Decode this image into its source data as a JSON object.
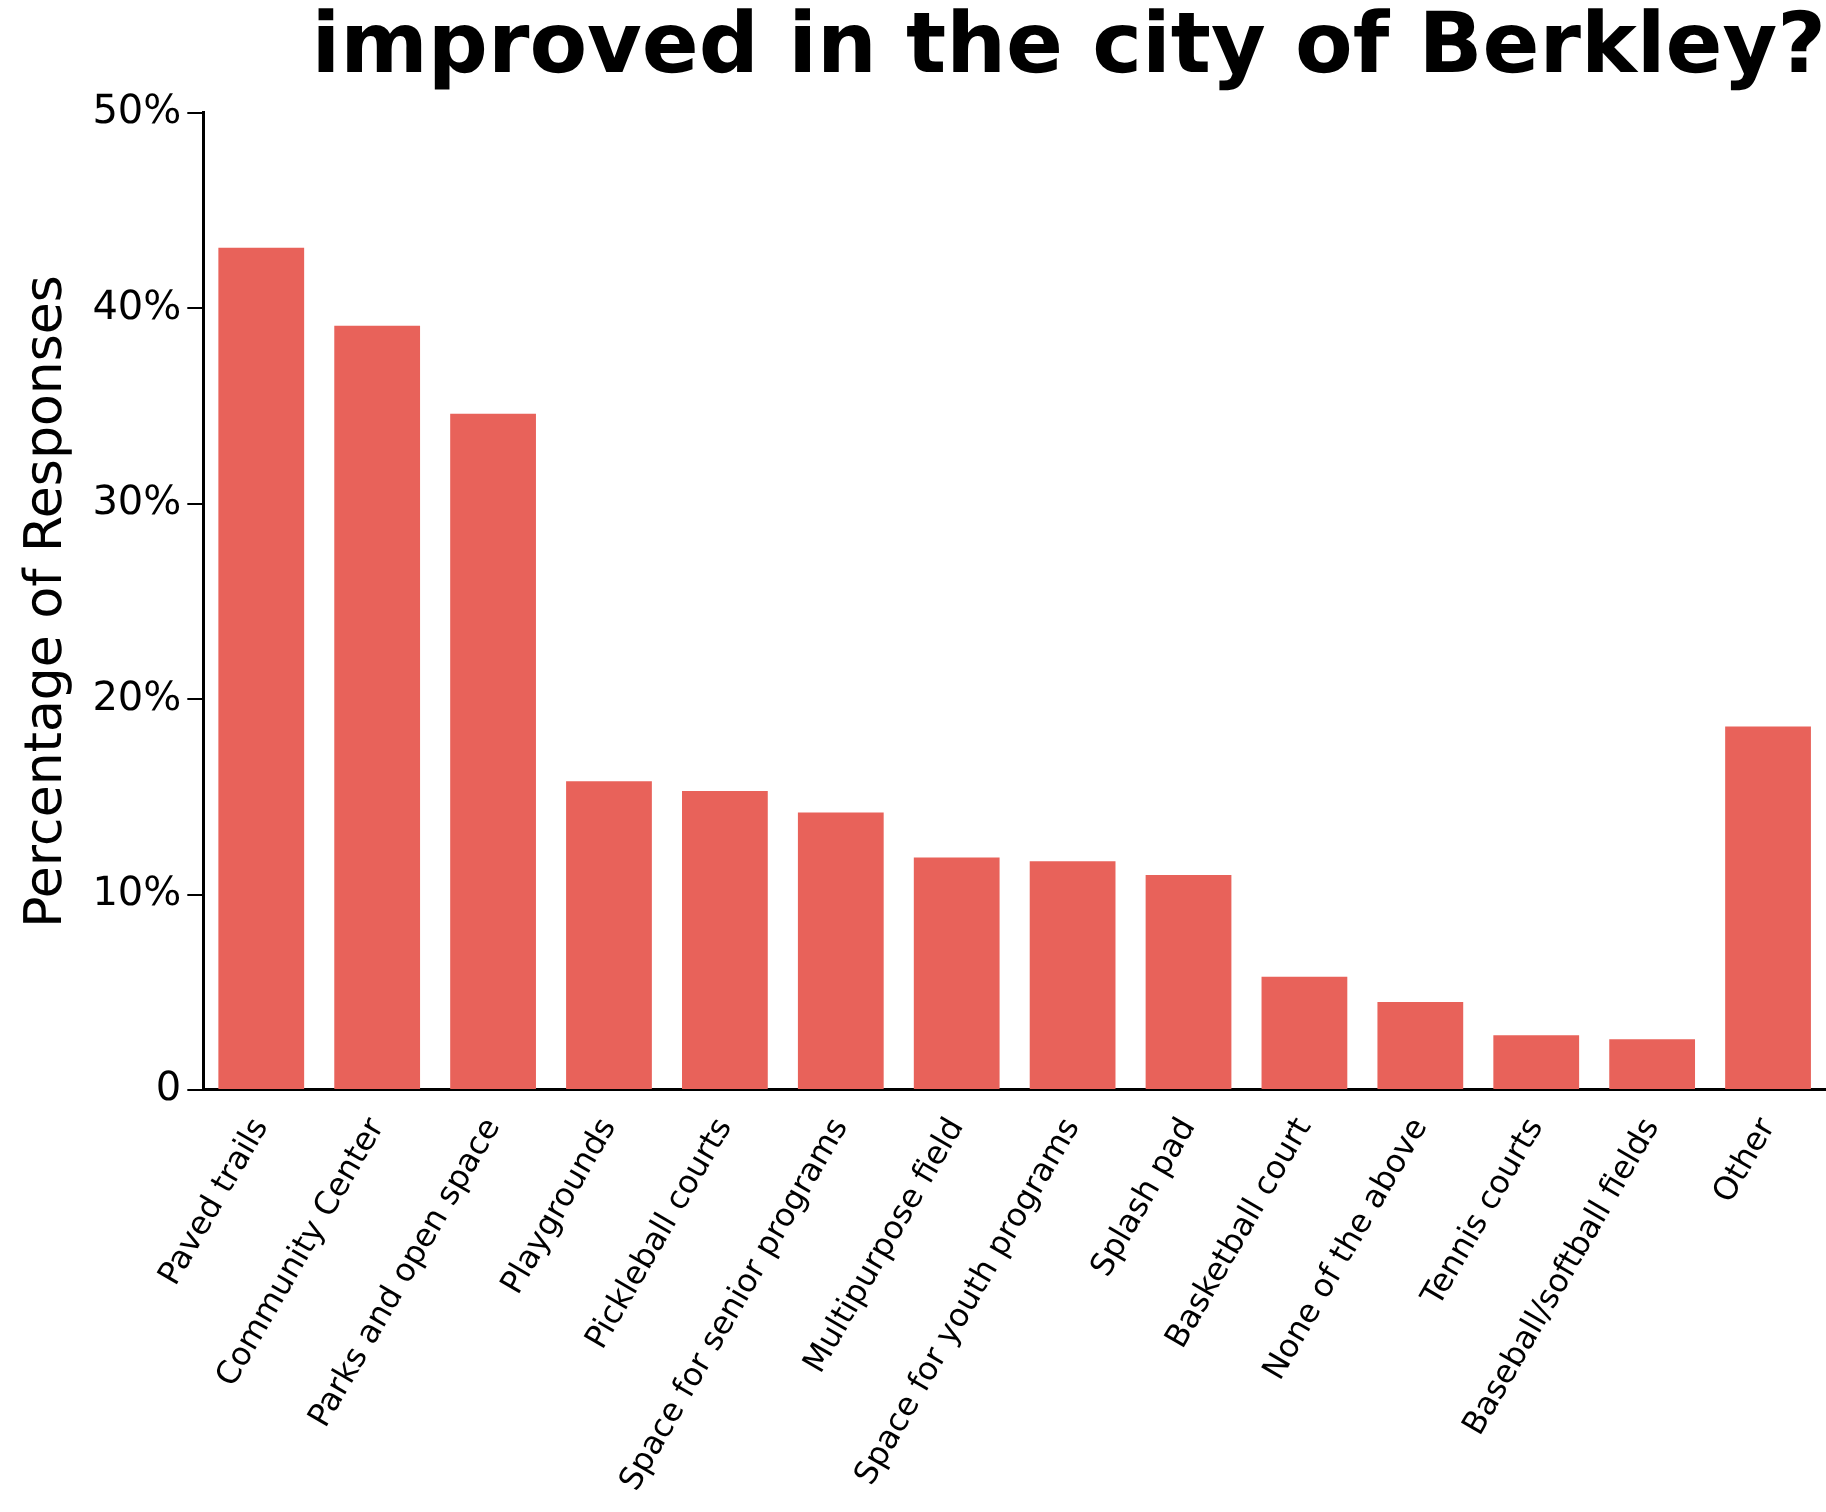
{
  "chart_data": {
    "type": "bar",
    "title": "improved in the city of Berkley?",
    "ylabel": "Percentage of Responses",
    "categories": [
      "Paved trails",
      "Community Center",
      "Parks and open space",
      "Playgrounds",
      "Pickleball courts",
      "Space for senior programs",
      "Multipurpose field",
      "Space for youth programs",
      "Splash pad",
      "Basketball court",
      "None of the above",
      "Tennis courts",
      "Baseball/softball fields",
      "Other"
    ],
    "values": [
      43.1,
      39.1,
      34.6,
      15.8,
      15.3,
      14.2,
      11.9,
      11.7,
      11.0,
      5.8,
      4.5,
      2.8,
      2.6,
      18.6
    ],
    "color": "#e8625a",
    "ylim": [
      0,
      50
    ],
    "yticks": [
      0,
      {
        "value": 10,
        "label": "10%"
      },
      {
        "value": 20,
        "label": "20%"
      },
      {
        "value": 30,
        "label": "30%"
      },
      {
        "value": 40,
        "label": "40%"
      },
      {
        "value": 50,
        "label": "50%"
      }
    ],
    "grid": false,
    "legend": false
  }
}
